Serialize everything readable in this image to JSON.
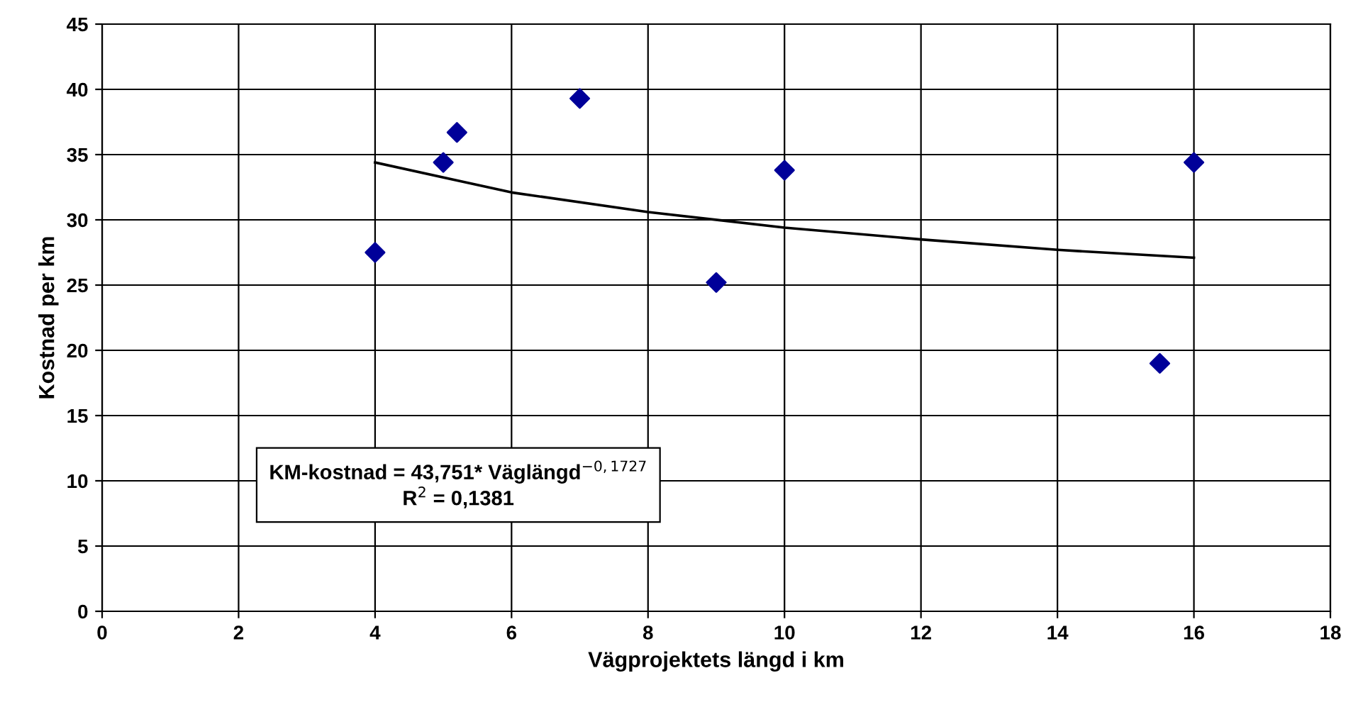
{
  "chart_data": {
    "type": "scatter",
    "xlabel": "Vägprojektets längd i km",
    "ylabel": "Kostnad per km",
    "x": [
      4,
      5,
      5.2,
      7,
      9,
      10,
      15.5,
      16
    ],
    "series": [
      {
        "color": "#000099",
        "marker": "diamond",
        "values": [
          27.5,
          34.4,
          36.7,
          39.3,
          25.2,
          33.8,
          19.0,
          34.4
        ]
      },
      {
        "type": "line",
        "color": "#000000",
        "marker": "none",
        "line_style": "solid",
        "x": [
          4,
          6,
          8,
          10,
          12,
          14,
          16
        ],
        "values": [
          34.4,
          32.1,
          30.6,
          29.4,
          28.5,
          27.7,
          27.1
        ]
      }
    ],
    "xlim": [
      0,
      18
    ],
    "xticks": [
      0,
      2,
      4,
      6,
      8,
      10,
      12,
      14,
      16,
      18
    ],
    "ylim": [
      0,
      45
    ],
    "yticks": [
      0,
      5,
      10,
      15,
      20,
      25,
      30,
      35,
      40,
      45
    ],
    "grid": true,
    "annotations": [
      "KM-kostnad = 43,751* Väglängd$^{−0,1727}$",
      "R$^{2}$ = 0,1381"
    ]
  }
}
